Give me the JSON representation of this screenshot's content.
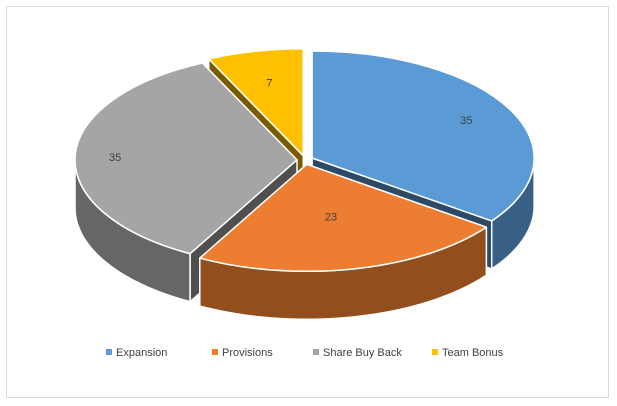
{
  "chart_data": {
    "type": "pie",
    "title": "",
    "categories": [
      "Expansion",
      "Provisions",
      "Share Buy Back",
      "Team Bonus"
    ],
    "values": [
      35,
      23,
      35,
      7
    ],
    "data_labels": [
      "35",
      "23",
      "35",
      "7"
    ],
    "colors": [
      "#5B9BD5",
      "#ED7D31",
      "#A5A5A5",
      "#FFC000"
    ],
    "exploded": true,
    "three_d": true,
    "legend_position": "bottom"
  }
}
